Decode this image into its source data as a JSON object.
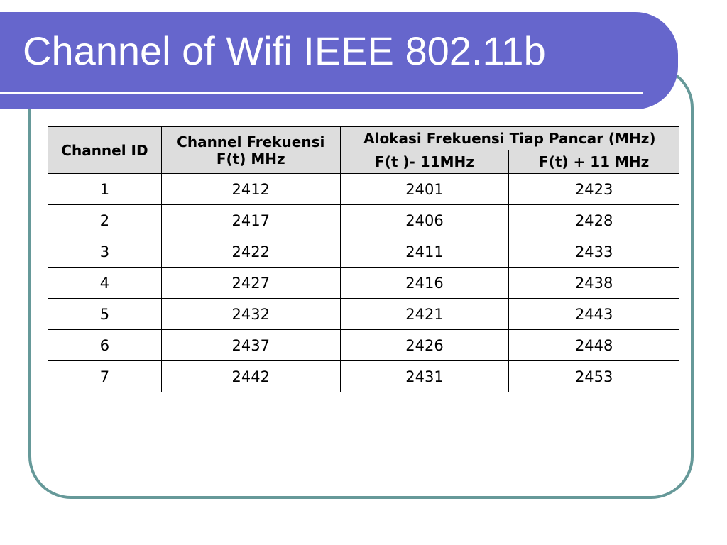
{
  "slide": {
    "title": "Channel of Wifi IEEE 802.11b"
  },
  "table": {
    "headers": {
      "channel_id": "Channel ID",
      "channel_freq": "Channel Frekuensi F(t) MHz",
      "alokasi": "Alokasi Frekuensi Tiap Pancar (MHz)",
      "minus": "F(t )- 11MHz",
      "plus": "F(t) + 11 MHz"
    },
    "rows": [
      {
        "id": "1",
        "freq": "2412",
        "minus": "2401",
        "plus": "2423"
      },
      {
        "id": "2",
        "freq": "2417",
        "minus": "2406",
        "plus": "2428"
      },
      {
        "id": "3",
        "freq": "2422",
        "minus": "2411",
        "plus": "2433"
      },
      {
        "id": "4",
        "freq": "2427",
        "minus": "2416",
        "plus": "2438"
      },
      {
        "id": "5",
        "freq": "2432",
        "minus": "2421",
        "plus": "2443"
      },
      {
        "id": "6",
        "freq": "2437",
        "minus": "2426",
        "plus": "2448"
      },
      {
        "id": "7",
        "freq": "2442",
        "minus": "2431",
        "plus": "2453"
      }
    ]
  },
  "colors": {
    "title_bar": "#6666cc",
    "frame_border": "#669999",
    "header_bg": "#dddddd"
  }
}
